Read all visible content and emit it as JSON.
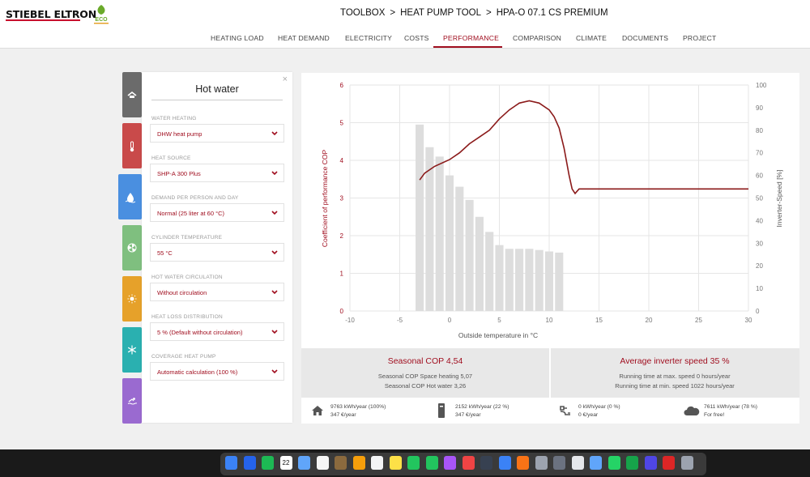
{
  "header": {
    "brand": "STIEBEL ELTRON",
    "eco_label": "ECO",
    "breadcrumb": [
      "TOOLBOX",
      "HEAT PUMP TOOL",
      "HPA-O 07.1 CS PREMIUM"
    ],
    "separator": ">"
  },
  "nav": {
    "items": [
      "HEATING LOAD",
      "HEAT DEMAND",
      "ELECTRICITY",
      "COSTS",
      "PERFORMANCE",
      "COMPARISON",
      "CLIMATE",
      "DOCUMENTS",
      "PROJECT"
    ],
    "active": "PERFORMANCE"
  },
  "side_tabs": [
    {
      "icon": "house-roof-icon",
      "color": "#6b6b6b"
    },
    {
      "icon": "thermometer-icon",
      "color": "#c94a4a"
    },
    {
      "icon": "water-drop-icon",
      "color": "#4a8fe0",
      "active": true
    },
    {
      "icon": "fan-icon",
      "color": "#7fbf7f"
    },
    {
      "icon": "sun-icon",
      "color": "#e6a12a"
    },
    {
      "icon": "snowflake-icon",
      "color": "#2ab0b0"
    },
    {
      "icon": "swimmer-icon",
      "color": "#9a6ad0"
    }
  ],
  "panel": {
    "title": "Hot water",
    "close": "×",
    "fields": [
      {
        "label": "WATER HEATING",
        "value": "DHW heat pump"
      },
      {
        "label": "HEAT SOURCE",
        "value": "SHP-A 300 Plus"
      },
      {
        "label": "DEMAND PER PERSON AND DAY",
        "value": "Normal (25 liter at 60 °C)"
      },
      {
        "label": "CYLINDER TEMPERATURE",
        "value": "55 °C"
      },
      {
        "label": "HOT WATER CIRCULATION",
        "value": "Without circulation"
      },
      {
        "label": "HEAT LOSS DISTRIBUTION",
        "value": "5 % (Default without circulation)"
      },
      {
        "label": "COVERAGE HEAT PUMP",
        "value": "Automatic calculation (100 %)"
      }
    ]
  },
  "chart_data": {
    "type": "bar",
    "xlabel": "Outside temperature in °C",
    "ylabel": "Coefficient of performance COP",
    "y2label": "Inverter-Speed [%]",
    "xlim": [
      -10,
      30
    ],
    "ylim": [
      0,
      6
    ],
    "y2lim": [
      0,
      100
    ],
    "x_ticks": [
      -10,
      -5,
      0,
      5,
      10,
      15,
      20,
      25,
      30
    ],
    "y_ticks": [
      0,
      1,
      2,
      3,
      4,
      5,
      6
    ],
    "y2_ticks": [
      0,
      10,
      20,
      30,
      40,
      50,
      60,
      70,
      80,
      90,
      100
    ],
    "grid": true,
    "series": [
      {
        "kind": "bar",
        "color": "#dddddd",
        "x": [
          -3,
          -2,
          -1,
          0,
          1,
          2,
          3,
          4,
          5,
          6,
          7,
          8,
          9,
          10,
          11
        ],
        "values": [
          4.95,
          4.35,
          4.1,
          3.6,
          3.3,
          2.95,
          2.5,
          2.1,
          1.75,
          1.65,
          1.65,
          1.65,
          1.62,
          1.58,
          1.55
        ]
      },
      {
        "kind": "line",
        "axis": "y2",
        "color": "#8b1a1a",
        "x": [
          -3,
          -2.5,
          -1.5,
          0,
          1,
          2,
          3,
          4,
          5,
          6,
          7,
          8,
          9,
          10,
          10.5,
          11,
          11.5,
          12,
          12.3,
          12.6,
          13,
          14,
          16,
          20,
          25,
          30
        ],
        "values": [
          58,
          61,
          64,
          67,
          70,
          74,
          77,
          80,
          85,
          89,
          92,
          93,
          92,
          89,
          86,
          81,
          72,
          60,
          54,
          52,
          54,
          54,
          54,
          54,
          54,
          54
        ]
      }
    ]
  },
  "summary": {
    "left": {
      "title": "Seasonal COP 4,54",
      "lines": [
        "Seasonal COP Space heating 5,07",
        "Seasonal COP Hot water 3,26"
      ]
    },
    "right": {
      "title": "Average inverter speed 35 %",
      "lines": [
        "Running time at max. speed 0 hours/year",
        "Running time at min. speed 1022 hours/year"
      ]
    }
  },
  "footer": [
    {
      "icon": "house-icon",
      "line1": "9763 kWh/year (100%)",
      "line2": "347 €/year"
    },
    {
      "icon": "cylinder-icon",
      "line1": "2152 kWh/year (22 %)",
      "line2": "347 €/year"
    },
    {
      "icon": "power-plug-icon",
      "line1": "0 kWh/year (0 %)",
      "line2": "0 €/year"
    },
    {
      "icon": "cloud-icon",
      "line1": "7611 kWh/year (78 %)",
      "line2": "For free!"
    }
  ],
  "dock": {
    "icons": [
      "finder-icon",
      "safari-icon",
      "spotify-icon",
      "calendar-icon",
      "mail-icon",
      "chrome-icon",
      "app-icon",
      "photos-icon",
      "reminders-icon",
      "notes-icon",
      "facetime-icon",
      "messages-icon",
      "podcasts-icon",
      "music-icon",
      "quicktime-icon",
      "app-store-icon",
      "firefox-icon",
      "settings-icon",
      "calculator-icon",
      "textedit-icon",
      "preview-icon",
      "whatsapp-icon",
      "numbers-icon",
      "teams-icon",
      "office-icon",
      "trash-icon"
    ],
    "calendar_day": "22"
  }
}
